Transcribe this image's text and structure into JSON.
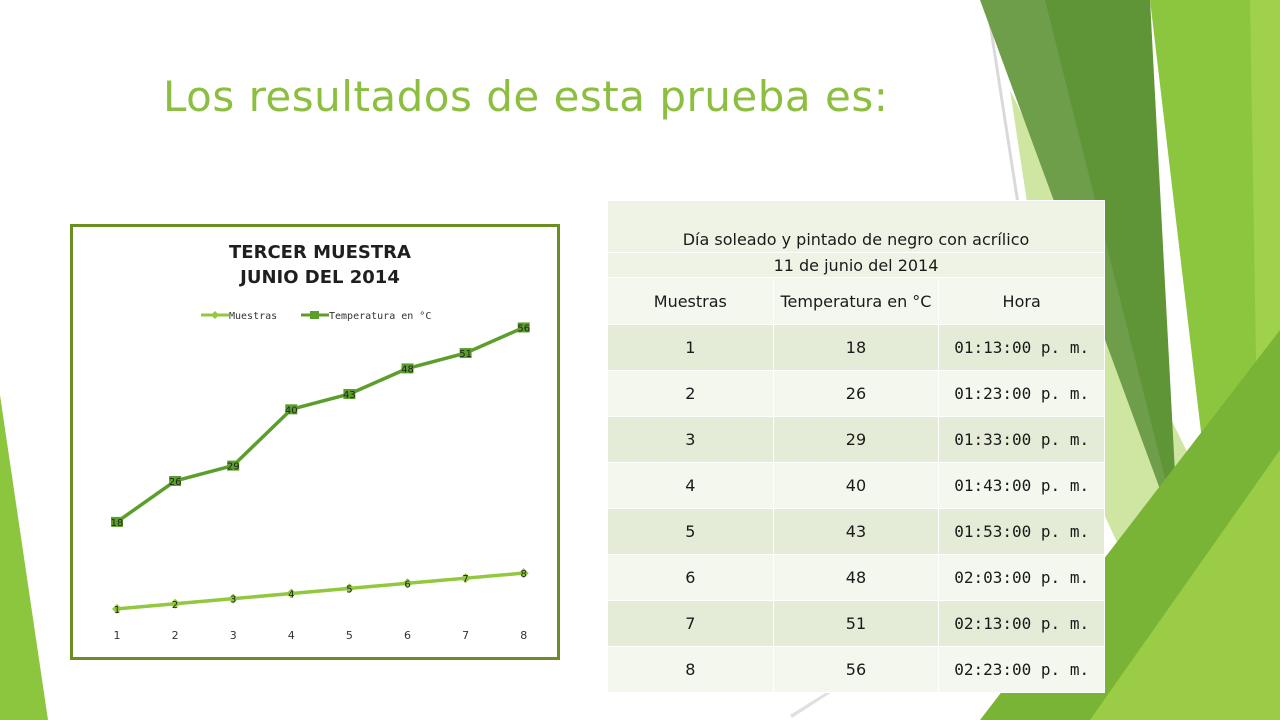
{
  "slide": {
    "title": "Los resultados de esta prueba es:",
    "colors": {
      "accent": "#8cbf3f",
      "dark_green": "#5a9a2e",
      "light_green": "#9ccc42",
      "line_green": "#5c9e2c",
      "marker_green": "#92c83e"
    }
  },
  "chart_data": {
    "type": "line",
    "title_line1": "TERCER MUESTRA",
    "title_line2": "JUNIO DEL 2014",
    "xlabel": "",
    "ylabel": "",
    "categories": [
      "1",
      "2",
      "3",
      "4",
      "5",
      "6",
      "7",
      "8"
    ],
    "legend_position": "top",
    "grid": false,
    "ylim": [
      0,
      60
    ],
    "series": [
      {
        "name": "Muestras",
        "values": [
          1,
          2,
          3,
          4,
          5,
          6,
          7,
          8
        ],
        "color": "#92c83e",
        "marker": "diamond"
      },
      {
        "name": "Temperatura en °C",
        "values": [
          18,
          26,
          29,
          40,
          43,
          48,
          51,
          56
        ],
        "color": "#5c9e2c",
        "marker": "square"
      }
    ]
  },
  "table": {
    "caption_line1": "Día soleado y pintado de negro con acrílico",
    "caption_line2": "11 de junio del 2014",
    "headers": [
      "Muestras",
      "Temperatura en °C",
      "Hora"
    ],
    "rows": [
      [
        "1",
        "18",
        "01:13:00 p. m."
      ],
      [
        "2",
        "26",
        "01:23:00 p. m."
      ],
      [
        "3",
        "29",
        "01:33:00 p. m."
      ],
      [
        "4",
        "40",
        "01:43:00 p. m."
      ],
      [
        "5",
        "43",
        "01:53:00 p. m."
      ],
      [
        "6",
        "48",
        "02:03:00 p. m."
      ],
      [
        "7",
        "51",
        "02:13:00 p. m."
      ],
      [
        "8",
        "56",
        "02:23:00 p. m."
      ]
    ]
  }
}
